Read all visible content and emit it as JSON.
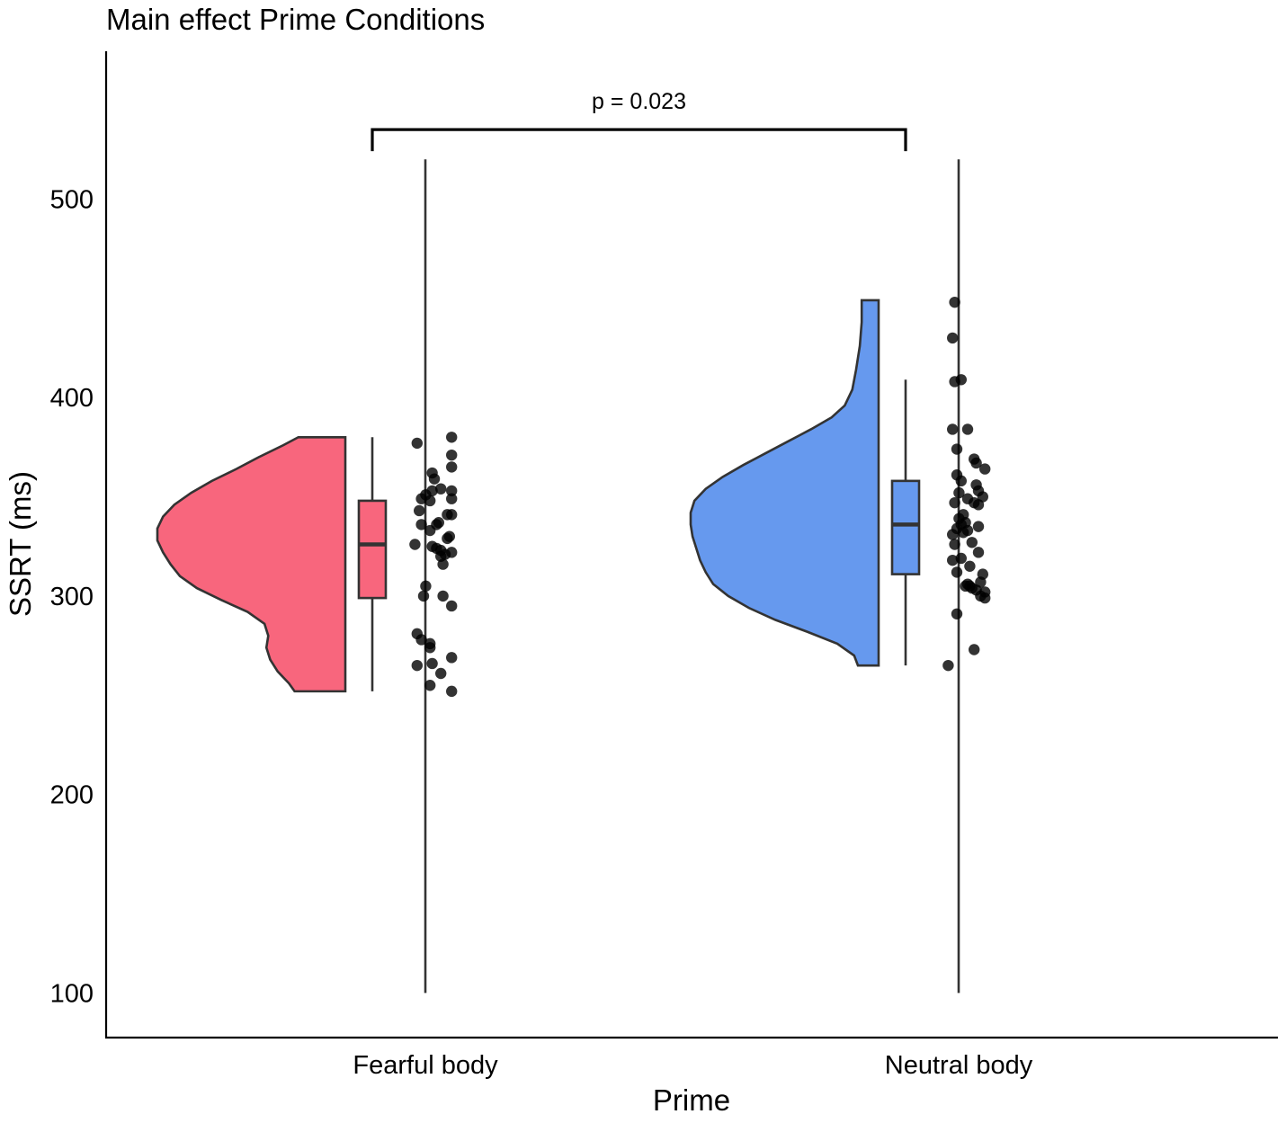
{
  "chart_data": {
    "type": "raincloud",
    "title": "Main effect Prime Conditions",
    "xlabel": "Prime",
    "ylabel": "SSRT (ms)",
    "ylim": [
      78,
      574
    ],
    "yticks": [
      100,
      200,
      300,
      400,
      500
    ],
    "categories": [
      "Fearful body",
      "Neutral body"
    ],
    "grid": false,
    "legend": "none",
    "series": [
      {
        "category": "Fearful body",
        "color": "#F8667D",
        "summary": {
          "min": 252,
          "q1": 299,
          "median": 326,
          "q3": 348,
          "max": 380
        },
        "density": [
          [
            252,
            0.27
          ],
          [
            256,
            0.3
          ],
          [
            262,
            0.36
          ],
          [
            268,
            0.4
          ],
          [
            274,
            0.42
          ],
          [
            280,
            0.41
          ],
          [
            286,
            0.43
          ],
          [
            292,
            0.52
          ],
          [
            298,
            0.66
          ],
          [
            304,
            0.79
          ],
          [
            310,
            0.88
          ],
          [
            316,
            0.93
          ],
          [
            322,
            0.97
          ],
          [
            328,
            1.0
          ],
          [
            334,
            1.0
          ],
          [
            340,
            0.97
          ],
          [
            346,
            0.91
          ],
          [
            352,
            0.82
          ],
          [
            358,
            0.71
          ],
          [
            364,
            0.58
          ],
          [
            370,
            0.46
          ],
          [
            376,
            0.33
          ],
          [
            380,
            0.25
          ]
        ],
        "points": [
          [
            377,
            -0.8
          ],
          [
            380,
            0.8
          ],
          [
            371,
            0.8
          ],
          [
            365,
            0.8
          ],
          [
            362,
            -0.1
          ],
          [
            359,
            0.0
          ],
          [
            354,
            0.3
          ],
          [
            353,
            0.8
          ],
          [
            351,
            -0.4
          ],
          [
            353,
            -0.1
          ],
          [
            349,
            -0.6
          ],
          [
            349,
            0.8
          ],
          [
            348,
            -0.2
          ],
          [
            343,
            -0.7
          ],
          [
            341,
            0.8
          ],
          [
            341,
            0.6
          ],
          [
            337,
            0.2
          ],
          [
            336,
            0.1
          ],
          [
            336,
            -0.6
          ],
          [
            333,
            -0.2
          ],
          [
            330,
            0.7
          ],
          [
            329,
            0.6
          ],
          [
            326,
            -0.9
          ],
          [
            325,
            -0.1
          ],
          [
            324,
            0.1
          ],
          [
            323,
            0.3
          ],
          [
            322,
            0.8
          ],
          [
            321,
            0.5
          ],
          [
            320,
            0.3
          ],
          [
            316,
            0.4
          ],
          [
            305,
            -0.4
          ],
          [
            300,
            0.4
          ],
          [
            300,
            -0.5
          ],
          [
            295,
            0.8
          ],
          [
            281,
            -0.8
          ],
          [
            278,
            -0.6
          ],
          [
            276,
            -0.2
          ],
          [
            274,
            -0.2
          ],
          [
            269,
            0.8
          ],
          [
            266,
            -0.1
          ],
          [
            265,
            -0.8
          ],
          [
            261,
            0.3
          ],
          [
            255,
            -0.2
          ],
          [
            252,
            0.8
          ]
        ]
      },
      {
        "category": "Neutral body",
        "color": "#6699EE",
        "summary": {
          "min": 265,
          "q1": 311,
          "median": 336,
          "q3": 358,
          "max": 409
        },
        "density": [
          [
            265,
            0.11
          ],
          [
            270,
            0.13
          ],
          [
            276,
            0.22
          ],
          [
            282,
            0.38
          ],
          [
            288,
            0.55
          ],
          [
            294,
            0.69
          ],
          [
            300,
            0.8
          ],
          [
            306,
            0.88
          ],
          [
            312,
            0.92
          ],
          [
            318,
            0.95
          ],
          [
            324,
            0.97
          ],
          [
            330,
            0.99
          ],
          [
            336,
            1.0
          ],
          [
            342,
            1.0
          ],
          [
            348,
            0.98
          ],
          [
            354,
            0.92
          ],
          [
            360,
            0.83
          ],
          [
            366,
            0.72
          ],
          [
            372,
            0.6
          ],
          [
            378,
            0.48
          ],
          [
            384,
            0.36
          ],
          [
            390,
            0.25
          ],
          [
            396,
            0.18
          ],
          [
            404,
            0.14
          ],
          [
            414,
            0.12
          ],
          [
            426,
            0.1
          ],
          [
            438,
            0.09
          ],
          [
            449,
            0.09
          ]
        ],
        "points": [
          [
            448,
            -0.6
          ],
          [
            430,
            -0.7
          ],
          [
            408,
            -0.6
          ],
          [
            409,
            -0.3
          ],
          [
            384,
            -0.7
          ],
          [
            384,
            0.0
          ],
          [
            374,
            -0.5
          ],
          [
            369,
            0.3
          ],
          [
            367,
            0.4
          ],
          [
            364,
            0.8
          ],
          [
            361,
            -0.5
          ],
          [
            358,
            -0.3
          ],
          [
            356,
            0.4
          ],
          [
            353,
            0.5
          ],
          [
            352,
            -0.4
          ],
          [
            350,
            0.7
          ],
          [
            349,
            0.0
          ],
          [
            347,
            0.3
          ],
          [
            347,
            -0.6
          ],
          [
            346,
            0.5
          ],
          [
            341,
            -0.2
          ],
          [
            339,
            -0.4
          ],
          [
            337,
            -0.1
          ],
          [
            336,
            -0.3
          ],
          [
            335,
            0.5
          ],
          [
            334,
            -0.5
          ],
          [
            333,
            0.0
          ],
          [
            332,
            -0.2
          ],
          [
            331,
            -0.7
          ],
          [
            327,
            0.2
          ],
          [
            326,
            -0.6
          ],
          [
            322,
            0.5
          ],
          [
            319,
            -0.3
          ],
          [
            318,
            -0.7
          ],
          [
            315,
            0.1
          ],
          [
            312,
            -0.5
          ],
          [
            311,
            0.7
          ],
          [
            307,
            0.6
          ],
          [
            306,
            0.0
          ],
          [
            305,
            -0.1
          ],
          [
            305,
            0.1
          ],
          [
            304,
            0.2
          ],
          [
            303,
            0.4
          ],
          [
            302,
            0.8
          ],
          [
            300,
            0.6
          ],
          [
            299,
            0.8
          ],
          [
            291,
            -0.5
          ],
          [
            273,
            0.3
          ],
          [
            265,
            -0.9
          ]
        ]
      }
    ],
    "annotations": [
      {
        "text": "p = 0.023",
        "between": [
          "Fearful body",
          "Neutral body"
        ],
        "bracket_y": 535
      }
    ]
  }
}
